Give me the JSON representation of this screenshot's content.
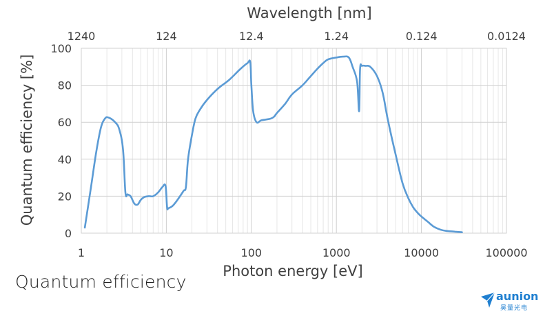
{
  "caption": "Quantum efficiency",
  "logo": {
    "word": "aunion",
    "subtitle": "昊量光电",
    "color": "#1f7fd0"
  },
  "chart_data": {
    "type": "line",
    "title": "",
    "xlabel": "Photon energy [eV]",
    "ylabel": "Quantum efficiency [%]",
    "x2label": "Wavelength [nm]",
    "xscale": "log",
    "xlim": [
      1,
      100000
    ],
    "ylim": [
      0,
      100
    ],
    "xticks": [
      1,
      10,
      100,
      1000,
      10000,
      100000
    ],
    "xtick_labels": [
      "1",
      "10",
      "100",
      "1000",
      "10000",
      "100000"
    ],
    "x2ticks": [
      1,
      10,
      100,
      1000,
      10000,
      100000
    ],
    "x2tick_labels": [
      "1240",
      "124",
      "12.4",
      "1.24",
      "0.124",
      "0.0124"
    ],
    "yticks": [
      0,
      20,
      40,
      60,
      80,
      100
    ],
    "ytick_labels": [
      "0",
      "20",
      "40",
      "60",
      "80",
      "100"
    ],
    "grid": true,
    "legend": "none",
    "line_color": "#5b9bd5",
    "series": [
      {
        "x": [
          1.1,
          1.3,
          1.5,
          1.7,
          1.9,
          2.1,
          2.5,
          2.8,
          3.1,
          3.3,
          3.5,
          3.8,
          4.2,
          4.6,
          5.0,
          5.5,
          6.2,
          7.0,
          8.0,
          9.0,
          9.8,
          10.2,
          10.6,
          12,
          14,
          16,
          17,
          18,
          20,
          22,
          25,
          30,
          40,
          55,
          75,
          90,
          97,
          100,
          105,
          115,
          130,
          150,
          170,
          185,
          200,
          250,
          300,
          400,
          500,
          600,
          700,
          800,
          1000,
          1200,
          1400,
          1550,
          1750,
          1850,
          1900,
          2000,
          2200,
          2500,
          3000,
          3500,
          4000,
          5000,
          6000,
          7000,
          8000,
          9000,
          10000,
          12000,
          14000,
          17000,
          20000,
          25000,
          30000
        ],
        "y": [
          3,
          25,
          44,
          57,
          62,
          62.5,
          60,
          56,
          45,
          22,
          21,
          20,
          16,
          15.5,
          18,
          19.5,
          20,
          20,
          22,
          25,
          25.5,
          14,
          13.5,
          15,
          19,
          23,
          25,
          40,
          53,
          62,
          67,
          72,
          78,
          83,
          89,
          92,
          92.5,
          80,
          66,
          60,
          61,
          61.5,
          62,
          63,
          65,
          70,
          75,
          80,
          85,
          89,
          92,
          94,
          95,
          95.5,
          95,
          90,
          82,
          66,
          89,
          90.5,
          90.5,
          90,
          85,
          76,
          62,
          42,
          27,
          19,
          14,
          11,
          9,
          6,
          3.5,
          1.8,
          1.2,
          0.8,
          0.5
        ]
      }
    ]
  }
}
